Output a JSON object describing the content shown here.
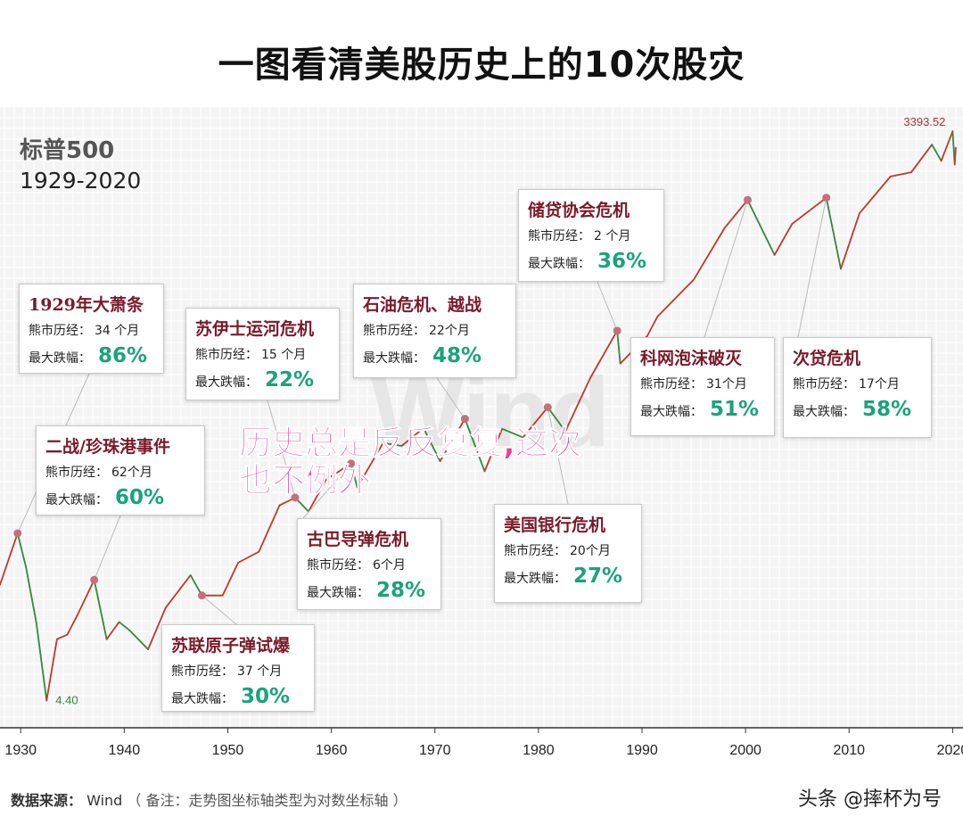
{
  "title": "一图看清美股历史上的10次股灾",
  "chart_data": {
    "type": "line",
    "series_name": "标普500",
    "period": "1929-2020",
    "y_scale": "log",
    "xlim": [
      1928,
      2021
    ],
    "x_ticks": [
      1930,
      1940,
      1950,
      1960,
      1970,
      1980,
      1990,
      2000,
      2010,
      2020
    ],
    "ylim": [
      3.2,
      4500
    ],
    "grid": true,
    "x": [
      1928.0,
      1929.7,
      1930.5,
      1931.5,
      1932.5,
      1933.5,
      1934.5,
      1935.5,
      1937.1,
      1938.3,
      1939.5,
      1940.5,
      1942.3,
      1944.0,
      1946.4,
      1947.5,
      1949.5,
      1951.0,
      1953.0,
      1955.0,
      1956.5,
      1957.8,
      1959.5,
      1961.9,
      1962.5,
      1965.0,
      1966.8,
      1968.9,
      1970.5,
      1972.9,
      1974.8,
      1976.5,
      1978.5,
      1980.9,
      1982.6,
      1985.0,
      1987.6,
      1987.9,
      1990.5,
      1991.5,
      1995.0,
      1998.0,
      2000.2,
      2002.8,
      2004.5,
      2007.8,
      2009.2,
      2011.0,
      2014.0,
      2016.0,
      2018.0,
      2018.9,
      2020.0,
      2020.2,
      2020.3
    ],
    "y": [
      17,
      31,
      21,
      11,
      4.4,
      9,
      9.5,
      12,
      18,
      9,
      11,
      10,
      8,
      13,
      19,
      15,
      15,
      22,
      25,
      43,
      47,
      40,
      58,
      70,
      53,
      89,
      86,
      106,
      72,
      118,
      64,
      105,
      95,
      135,
      102,
      190,
      330,
      225,
      310,
      390,
      600,
      1100,
      1520,
      800,
      1150,
      1560,
      680,
      1300,
      2000,
      2100,
      2900,
      2400,
      3390,
      2300,
      2800
    ],
    "min_label": "4.40",
    "max_label": "3393.52",
    "watermark": "Wind",
    "crises": [
      {
        "name": "1929年大萧条",
        "duration": "34  个月",
        "drawdown": "86%",
        "x": 1929.7,
        "y": 31
      },
      {
        "name": "二战/珍珠港事件",
        "duration": "62个月",
        "drawdown": "60%",
        "x": 1937.1,
        "y": 18
      },
      {
        "name": "苏联原子弹试爆",
        "duration": "37  个月",
        "drawdown": "30%",
        "x": 1947.5,
        "y": 15
      },
      {
        "name": "苏伊士运河危机",
        "duration": "15  个月",
        "drawdown": "22%",
        "x": 1956.5,
        "y": 47
      },
      {
        "name": "古巴导弹危机",
        "duration": "6个月",
        "drawdown": "28%",
        "x": 1961.9,
        "y": 70
      },
      {
        "name": "石油危机、越战",
        "duration": "22个月",
        "drawdown": "48%",
        "x": 1972.9,
        "y": 118
      },
      {
        "name": "美国银行危机",
        "duration": "20个月",
        "drawdown": "27%",
        "x": 1980.9,
        "y": 135
      },
      {
        "name": "储贷协会危机",
        "duration": "2  个月",
        "drawdown": "36%",
        "x": 1987.6,
        "y": 330
      },
      {
        "name": "科网泡沫破灭",
        "duration": "31个月",
        "drawdown": "51%",
        "x": 2000.2,
        "y": 1520
      },
      {
        "name": "次贷危机",
        "duration": "17个月",
        "drawdown": "58%",
        "x": 2007.8,
        "y": 1560
      }
    ]
  },
  "labels": {
    "duration_prefix": "熊市历经：",
    "drawdown_prefix": "最大跌幅："
  },
  "overlay": {
    "line1": "历史总是反反复复,这次",
    "line2": "也不例外"
  },
  "footer": {
    "source_label": "数据来源：",
    "source": "Wind",
    "note": "（ 备注：走势图坐标轴类型为对数坐标轴 ）"
  },
  "watermark_text": "头条 @摔杯为号",
  "colors": {
    "up": "#c0392b",
    "down": "#2e8b3a",
    "title_box": "#7a1a2a",
    "pct": "#1aa37a",
    "overlay": "#f03a9b",
    "dot": "#c4707e"
  }
}
